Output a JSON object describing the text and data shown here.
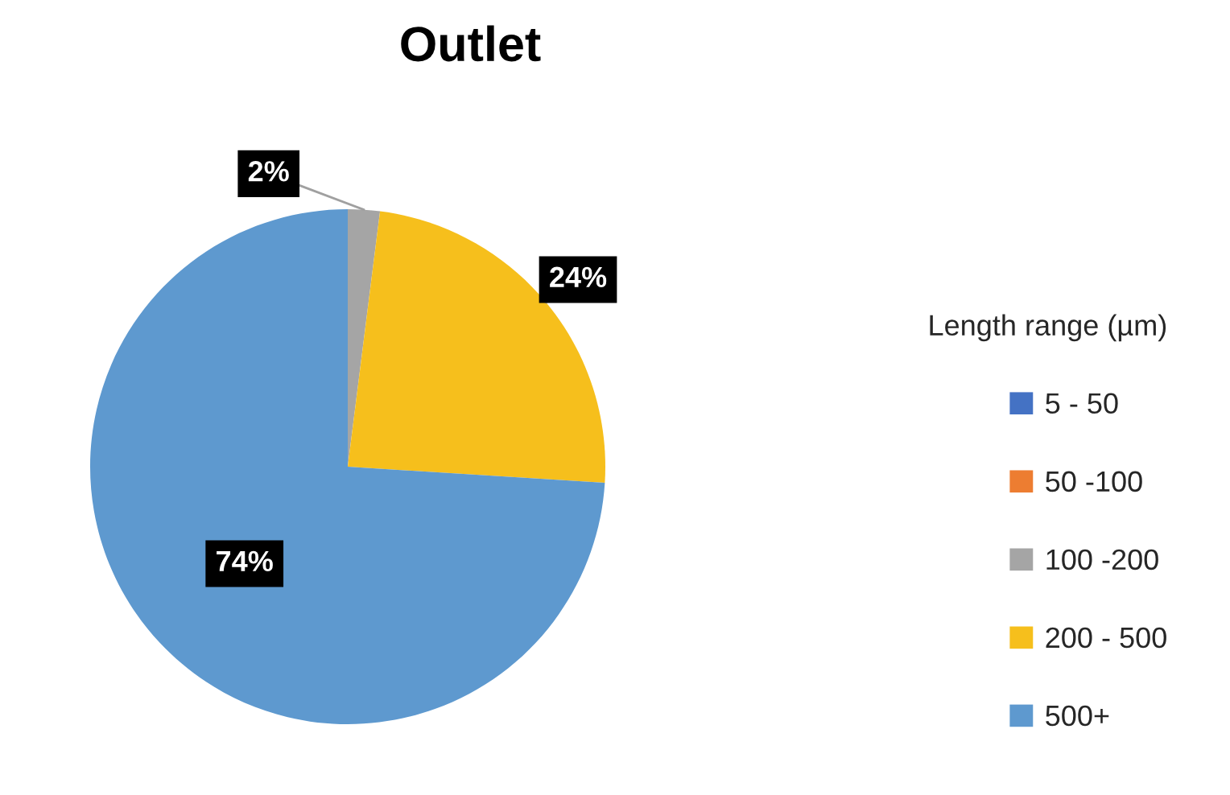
{
  "chart_data": {
    "type": "pie",
    "title": "Outlet",
    "legend_title": "Length range (µm)",
    "categories": [
      "5 - 50",
      "50 -100",
      "100 -200",
      "200 - 500",
      "500+"
    ],
    "values": [
      0,
      0,
      2,
      24,
      74
    ],
    "colors": [
      "#4472c4",
      "#ed7d31",
      "#a5a5a5",
      "#f6bf1c",
      "#5e99cf"
    ],
    "value_labels": [
      null,
      null,
      "2%",
      "24%",
      "74%"
    ],
    "legend": "right"
  }
}
